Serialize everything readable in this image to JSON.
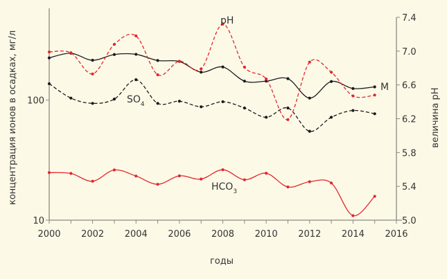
{
  "chart_data": {
    "type": "line",
    "title": "",
    "xlabel": "годы",
    "ylabel": "концентрация ионов в осадках, мг/л",
    "y2label": "величина pH",
    "xlim": [
      2000,
      2016
    ],
    "xticks": [
      2000,
      2002,
      2004,
      2006,
      2008,
      2010,
      2012,
      2014,
      2016
    ],
    "yscale": "log",
    "ylim": [
      10,
      490
    ],
    "yticks": [
      10,
      100
    ],
    "y2lim": [
      5.0,
      7.4
    ],
    "y2ticks": [
      "5.0",
      "5.4",
      "5.8",
      "6.2",
      "6.6",
      "7.0",
      "7.4"
    ],
    "grid": false,
    "x": [
      2000,
      2001,
      2002,
      2003,
      2004,
      2005,
      2006,
      2007,
      2008,
      2009,
      2010,
      2011,
      2012,
      2013,
      2014,
      2015
    ],
    "series": [
      {
        "name": "M",
        "label": "M",
        "axis": "left",
        "color": "#1a1a1a",
        "dash": false,
        "values": [
          225,
          246,
          215,
          240,
          241,
          214,
          210,
          171,
          189,
          144,
          144,
          151,
          104,
          143,
          125,
          129
        ]
      },
      {
        "name": "SO4",
        "label": "SO",
        "sub": "4",
        "axis": "left",
        "color": "#1a1a1a",
        "dash": true,
        "values": [
          137,
          104,
          94,
          102,
          148,
          94,
          98,
          88,
          97,
          86,
          72,
          86,
          55,
          72,
          82,
          77
        ]
      },
      {
        "name": "HCO3",
        "label": "HCO",
        "sub": "3",
        "axis": "left",
        "color": "#e2262d",
        "dash": false,
        "values": [
          24.9,
          24.5,
          21.1,
          26.2,
          23.3,
          19.9,
          23.4,
          22.0,
          26.3,
          21.7,
          24.6,
          18.9,
          20.9,
          20.4,
          10.9,
          15.8
        ]
      },
      {
        "name": "pH",
        "label": "pH",
        "axis": "right",
        "color": "#e2262d",
        "dash": true,
        "values": [
          6.99,
          6.98,
          6.73,
          7.08,
          7.18,
          6.72,
          6.88,
          6.79,
          7.32,
          6.81,
          6.67,
          6.19,
          6.87,
          6.75,
          6.47,
          6.48
        ]
      }
    ]
  }
}
